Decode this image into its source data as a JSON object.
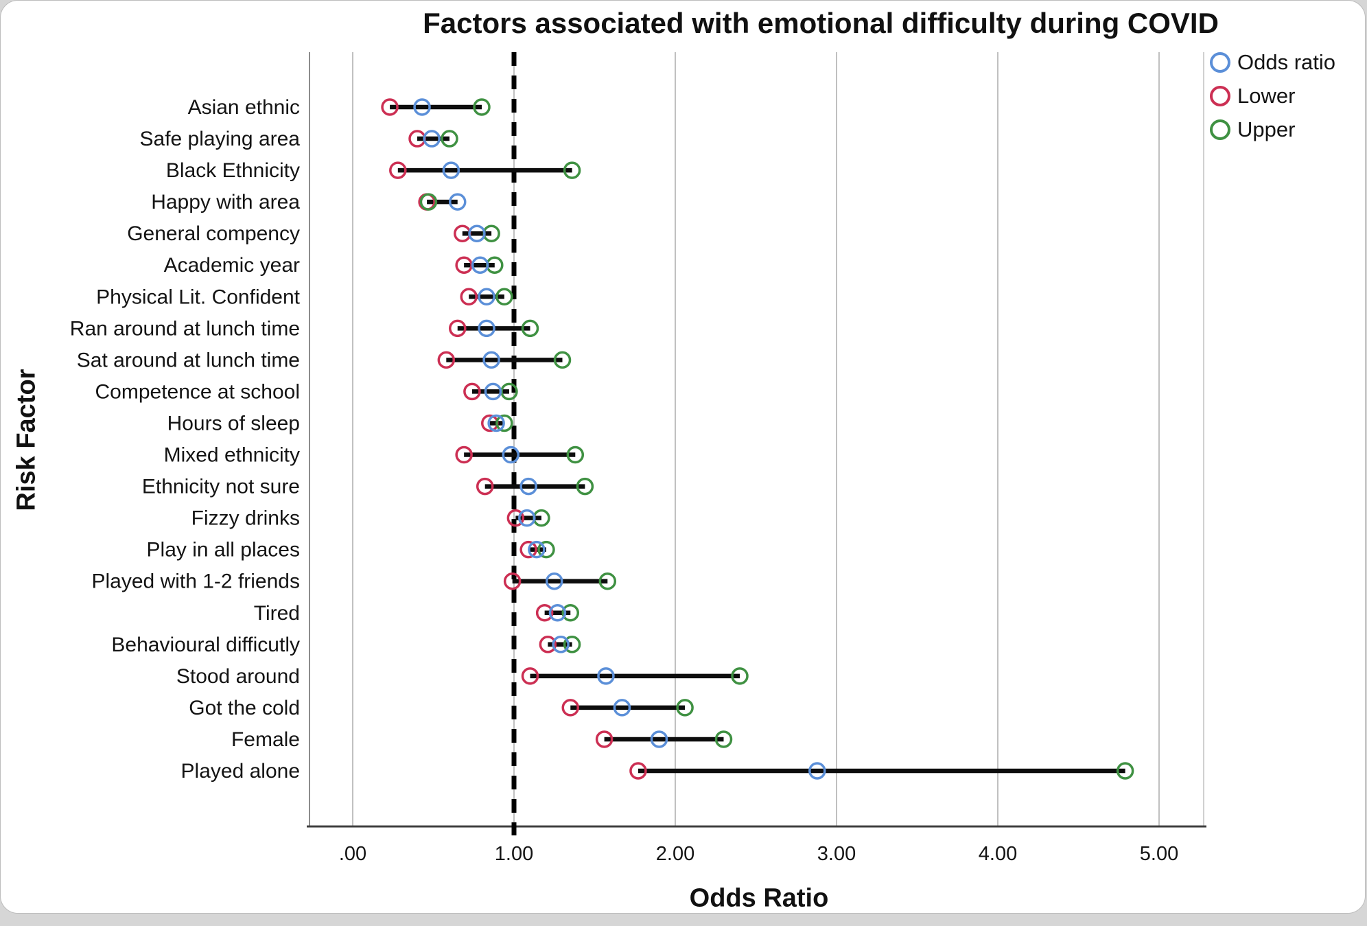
{
  "chart_data": {
    "type": "scatter",
    "variant": "forest-plot",
    "title": "Factors associated with emotional difficulty during COVID",
    "xlabel": "Odds Ratio",
    "ylabel": "Risk Factor",
    "xlim": [
      -0.27,
      5.28
    ],
    "grid": "vertical",
    "reference_line_x": 1.0,
    "xticks": [
      0,
      1,
      2,
      3,
      4,
      5
    ],
    "xtick_labels": [
      ".00",
      "1.00",
      "2.00",
      "3.00",
      "4.00",
      "5.00"
    ],
    "legend_position": "top-right-outside",
    "legend": [
      {
        "label": "Odds ratio",
        "color": "#5b8fd8"
      },
      {
        "label": "Lower",
        "color": "#cc2f53"
      },
      {
        "label": "Upper",
        "color": "#3f9142"
      }
    ],
    "categories": [
      "Asian ethnic",
      "Safe playing area",
      "Black Ethnicity",
      "Happy with area",
      "General compency",
      "Academic year",
      "Physical Lit. Confident",
      "Ran around at lunch time",
      "Sat around at lunch time",
      "Competence at school",
      "Hours of sleep",
      "Mixed ethnicity",
      "Ethnicity not sure",
      "Fizzy drinks",
      "Play in all places",
      "Played with 1-2 friends",
      "Tired",
      "Behavioural difficutly",
      "Stood around",
      "Got the cold",
      "Female",
      "Played alone"
    ],
    "series": [
      {
        "name": "Odds ratio",
        "values": [
          0.43,
          0.49,
          0.61,
          0.65,
          0.77,
          0.79,
          0.83,
          0.83,
          0.86,
          0.87,
          0.89,
          0.98,
          1.09,
          1.08,
          1.14,
          1.25,
          1.27,
          1.29,
          1.57,
          1.67,
          1.9,
          2.88
        ]
      },
      {
        "name": "Lower",
        "values": [
          0.23,
          0.4,
          0.28,
          0.46,
          0.68,
          0.69,
          0.72,
          0.65,
          0.58,
          0.74,
          0.85,
          0.69,
          0.82,
          1.01,
          1.09,
          0.99,
          1.19,
          1.21,
          1.1,
          1.35,
          1.56,
          1.77
        ]
      },
      {
        "name": "Upper",
        "values": [
          0.8,
          0.6,
          1.36,
          0.47,
          0.86,
          0.88,
          0.94,
          1.1,
          1.3,
          0.97,
          0.94,
          1.38,
          1.44,
          1.17,
          1.2,
          1.58,
          1.35,
          1.36,
          2.4,
          2.06,
          2.3,
          4.79
        ]
      }
    ],
    "colors": {
      "ci_line": "#0d0d0d",
      "reference_line": "#000000",
      "gridline": "#ababab",
      "axis_line": "#3f3f3f",
      "frame_line": "#8c8c8c",
      "text": "#141414"
    }
  }
}
